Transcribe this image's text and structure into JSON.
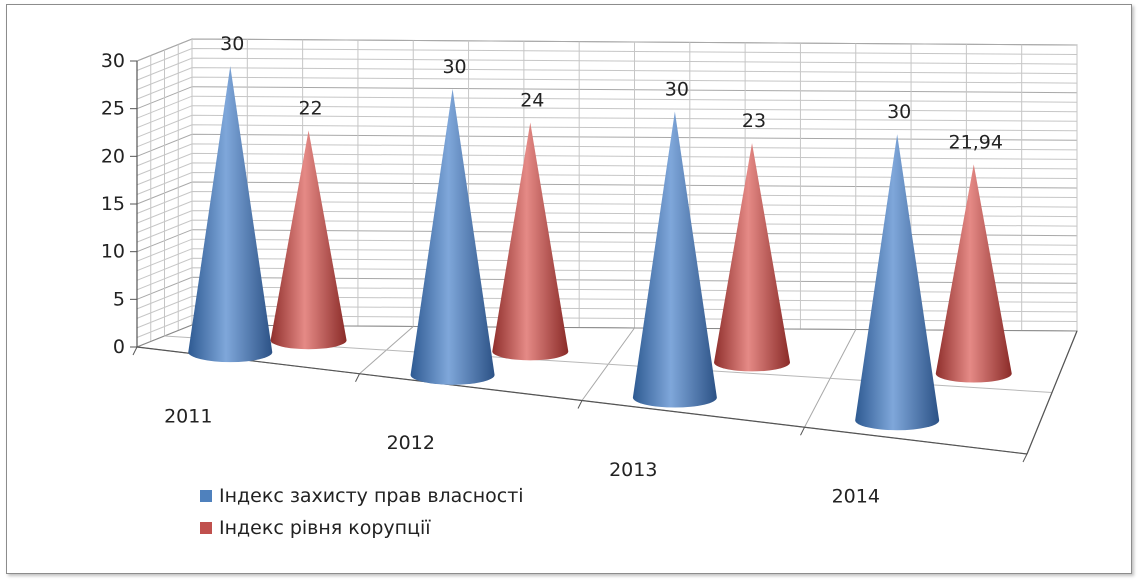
{
  "chart_data": {
    "type": "bar",
    "style": "3d-cone",
    "title": "",
    "categories": [
      "2011",
      "2012",
      "2013",
      "2014"
    ],
    "series": [
      {
        "name": "Індекс захисту прав власності",
        "color": "#4f81bd",
        "values": [
          30,
          30,
          30,
          30
        ],
        "labels": [
          "30",
          "30",
          "30",
          "30"
        ]
      },
      {
        "name": "Індекс рівня корупції",
        "color": "#c0504d",
        "values": [
          22,
          24,
          23,
          21.94
        ],
        "labels": [
          "22",
          "24",
          "23",
          "21,94"
        ]
      }
    ],
    "ylim": [
      0,
      30
    ],
    "yticks": [
      "0",
      "5",
      "10",
      "15",
      "20",
      "25",
      "30"
    ],
    "grid": true,
    "legend": "bottom-left"
  }
}
